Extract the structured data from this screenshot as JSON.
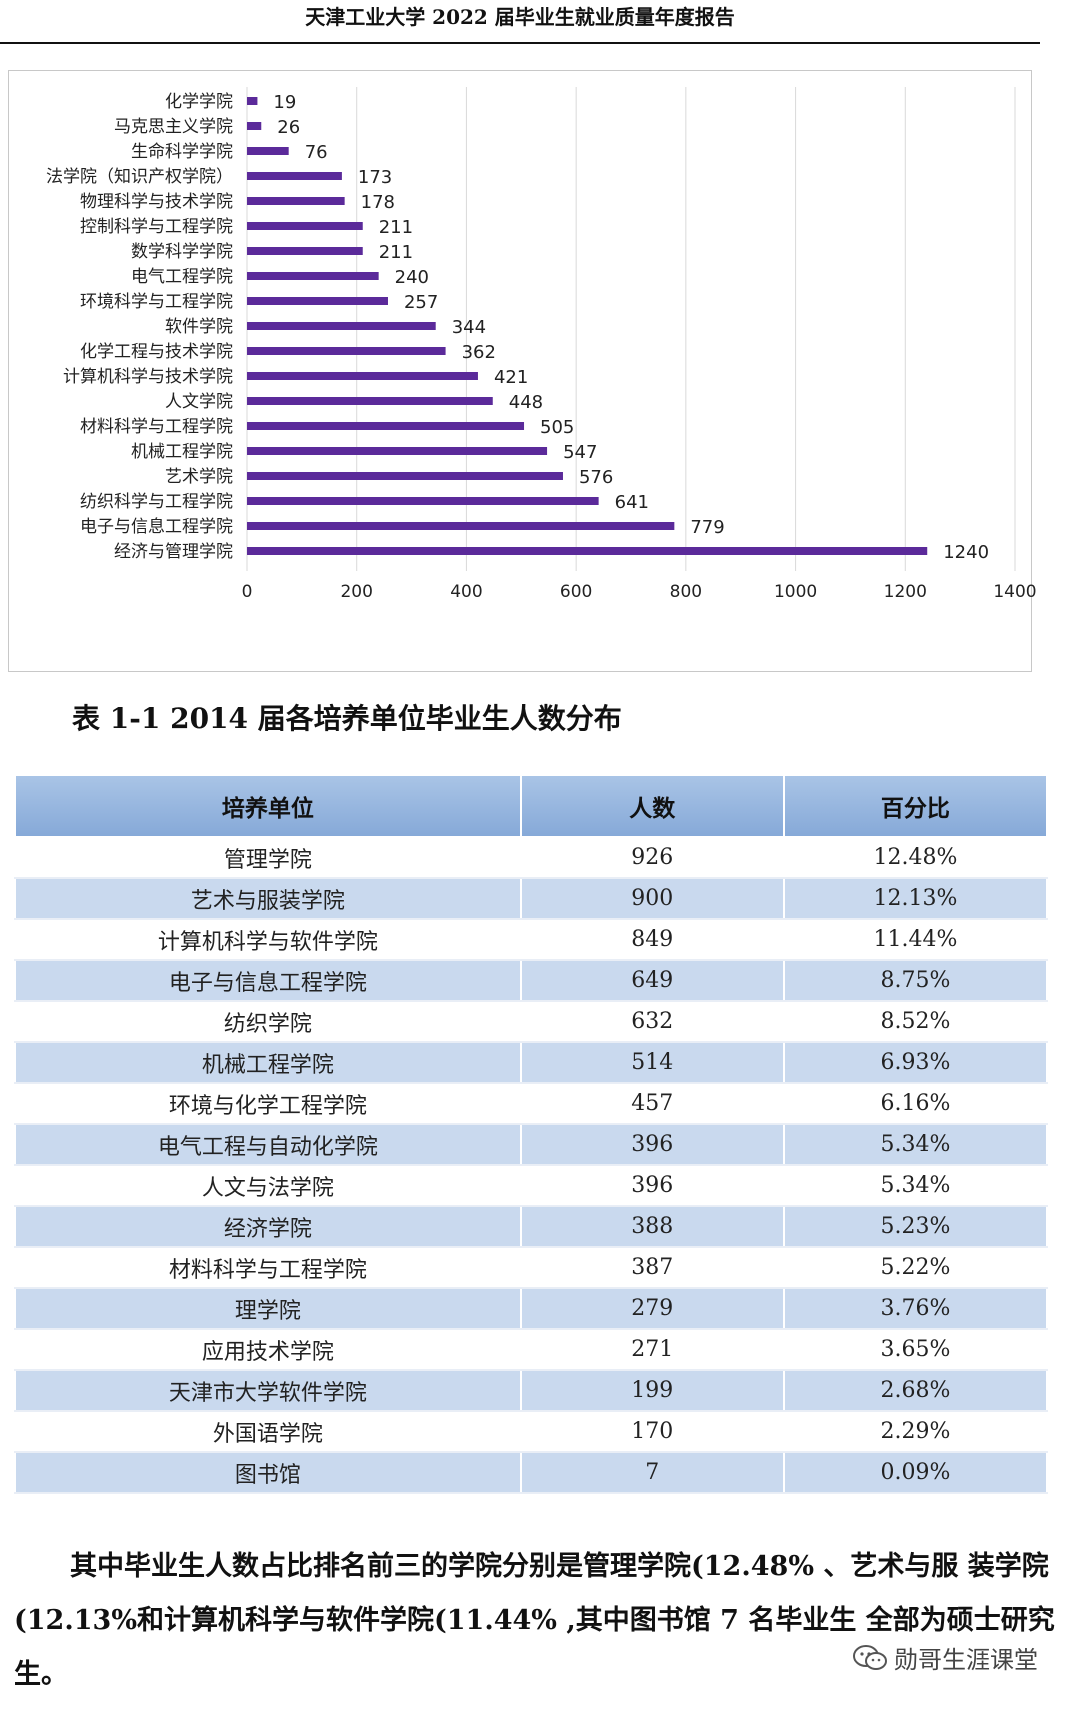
{
  "header": {
    "title": "天津工业大学 2022 届毕业生就业质量年度报告"
  },
  "chart_data": {
    "type": "bar",
    "orientation": "horizontal",
    "color": "#5b2a9a",
    "categories": [
      "化学学院",
      "马克思主义学院",
      "生命科学学院",
      "法学院（知识产权学院）",
      "物理科学与技术学院",
      "控制科学与工程学院",
      "数学科学学院",
      "电气工程学院",
      "环境科学与工程学院",
      "软件学院",
      "化学工程与技术学院",
      "计算机科学与技术学院",
      "人文学院",
      "材料科学与工程学院",
      "机械工程学院",
      "艺术学院",
      "纺织科学与工程学院",
      "电子与信息工程学院",
      "经济与管理学院"
    ],
    "values": [
      19,
      26,
      76,
      173,
      178,
      211,
      211,
      240,
      257,
      344,
      362,
      421,
      448,
      505,
      547,
      576,
      641,
      779,
      1240
    ],
    "xlim": [
      0,
      1400
    ],
    "xticks": [
      0,
      200,
      400,
      600,
      800,
      1000,
      1200,
      1400
    ],
    "grid": true,
    "data_labels": true
  },
  "table": {
    "caption": "表 1-1 2014 届各培养单位毕业生人数分布",
    "headers": [
      "培养单位",
      "人数",
      "百分比"
    ],
    "rows": [
      [
        "管理学院",
        "926",
        "12.48%"
      ],
      [
        "艺术与服装学院",
        "900",
        "12.13%"
      ],
      [
        "计算机科学与软件学院",
        "849",
        "11.44%"
      ],
      [
        "电子与信息工程学院",
        "649",
        "8.75%"
      ],
      [
        "纺织学院",
        "632",
        "8.52%"
      ],
      [
        "机械工程学院",
        "514",
        "6.93%"
      ],
      [
        "环境与化学工程学院",
        "457",
        "6.16%"
      ],
      [
        "电气工程与自动化学院",
        "396",
        "5.34%"
      ],
      [
        "人文与法学院",
        "396",
        "5.34%"
      ],
      [
        "经济学院",
        "388",
        "5.23%"
      ],
      [
        "材料科学与工程学院",
        "387",
        "5.22%"
      ],
      [
        "理学院",
        "279",
        "3.76%"
      ],
      [
        "应用技术学院",
        "271",
        "3.65%"
      ],
      [
        "天津市大学软件学院",
        "199",
        "2.68%"
      ],
      [
        "外国语学院",
        "170",
        "2.29%"
      ],
      [
        "图书馆",
        "7",
        "0.09%"
      ]
    ]
  },
  "paragraph": "其中毕业生人数占比排名前三的学院分别是管理学院(12.48% 、艺术与服 装学院(12.13%和计算机科学与软件学院(11.44% ,其中图书馆 7 名毕业生 全部为硕士研究生。",
  "watermark": {
    "text": "勋哥生涯课堂",
    "icon": "wechat-icon"
  }
}
